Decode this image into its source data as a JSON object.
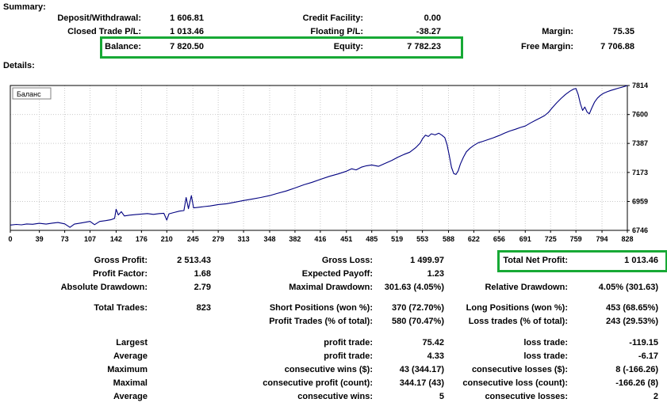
{
  "summary": {
    "title": "Summary:",
    "deposit_withdrawal_label": "Deposit/Withdrawal:",
    "deposit_withdrawal": "1 606.81",
    "credit_facility_label": "Credit Facility:",
    "credit_facility": "0.00",
    "closed_trade_pl_label": "Closed Trade P/L:",
    "closed_trade_pl": "1 013.46",
    "floating_pl_label": "Floating P/L:",
    "floating_pl": "-38.27",
    "margin_label": "Margin:",
    "margin": "75.35",
    "balance_label": "Balance:",
    "balance": "7 820.50",
    "equity_label": "Equity:",
    "equity": "7 782.23",
    "free_margin_label": "Free Margin:",
    "free_margin": "7 706.88"
  },
  "details": {
    "title": "Details:"
  },
  "chart_data": {
    "type": "line",
    "title": "Баланс",
    "xlim": [
      0,
      828
    ],
    "ylim": [
      6746,
      7814
    ],
    "x_ticks": [
      0,
      39,
      73,
      107,
      142,
      176,
      210,
      245,
      279,
      313,
      348,
      382,
      416,
      451,
      485,
      519,
      553,
      588,
      622,
      656,
      691,
      725,
      759,
      794,
      828
    ],
    "y_ticks": [
      6746,
      6959,
      7173,
      7387,
      7600,
      7814
    ],
    "grid": true,
    "legend_position": "top-left",
    "series": [
      {
        "name": "Баланс",
        "color": "#000080",
        "points": [
          [
            0,
            6785
          ],
          [
            8,
            6790
          ],
          [
            15,
            6787
          ],
          [
            22,
            6793
          ],
          [
            30,
            6791
          ],
          [
            39,
            6798
          ],
          [
            48,
            6792
          ],
          [
            56,
            6799
          ],
          [
            64,
            6804
          ],
          [
            73,
            6794
          ],
          [
            80,
            6768
          ],
          [
            86,
            6792
          ],
          [
            95,
            6800
          ],
          [
            101,
            6806
          ],
          [
            107,
            6812
          ],
          [
            113,
            6788
          ],
          [
            120,
            6812
          ],
          [
            128,
            6818
          ],
          [
            135,
            6824
          ],
          [
            140,
            6835
          ],
          [
            142,
            6902
          ],
          [
            145,
            6860
          ],
          [
            149,
            6884
          ],
          [
            153,
            6852
          ],
          [
            160,
            6858
          ],
          [
            168,
            6862
          ],
          [
            176,
            6866
          ],
          [
            184,
            6870
          ],
          [
            192,
            6864
          ],
          [
            200,
            6870
          ],
          [
            206,
            6872
          ],
          [
            210,
            6822
          ],
          [
            213,
            6868
          ],
          [
            220,
            6878
          ],
          [
            227,
            6888
          ],
          [
            233,
            6892
          ],
          [
            236,
            6988
          ],
          [
            239,
            6906
          ],
          [
            243,
            7002
          ],
          [
            246,
            6912
          ],
          [
            252,
            6916
          ],
          [
            260,
            6921
          ],
          [
            268,
            6926
          ],
          [
            279,
            6936
          ],
          [
            290,
            6942
          ],
          [
            300,
            6952
          ],
          [
            313,
            6966
          ],
          [
            324,
            6976
          ],
          [
            336,
            6988
          ],
          [
            348,
            7002
          ],
          [
            358,
            7018
          ],
          [
            370,
            7036
          ],
          [
            382,
            7058
          ],
          [
            394,
            7082
          ],
          [
            405,
            7100
          ],
          [
            416,
            7122
          ],
          [
            428,
            7144
          ],
          [
            440,
            7162
          ],
          [
            451,
            7182
          ],
          [
            458,
            7200
          ],
          [
            464,
            7192
          ],
          [
            471,
            7212
          ],
          [
            478,
            7222
          ],
          [
            485,
            7228
          ],
          [
            494,
            7218
          ],
          [
            503,
            7240
          ],
          [
            512,
            7262
          ],
          [
            520,
            7285
          ],
          [
            528,
            7305
          ],
          [
            536,
            7322
          ],
          [
            544,
            7355
          ],
          [
            550,
            7390
          ],
          [
            553,
            7420
          ],
          [
            557,
            7448
          ],
          [
            561,
            7438
          ],
          [
            565,
            7458
          ],
          [
            570,
            7450
          ],
          [
            575,
            7462
          ],
          [
            579,
            7448
          ],
          [
            583,
            7430
          ],
          [
            586,
            7380
          ],
          [
            589,
            7300
          ],
          [
            592,
            7210
          ],
          [
            595,
            7165
          ],
          [
            598,
            7158
          ],
          [
            601,
            7185
          ],
          [
            604,
            7235
          ],
          [
            608,
            7285
          ],
          [
            612,
            7325
          ],
          [
            617,
            7352
          ],
          [
            622,
            7372
          ],
          [
            628,
            7392
          ],
          [
            634,
            7402
          ],
          [
            641,
            7415
          ],
          [
            648,
            7428
          ],
          [
            656,
            7445
          ],
          [
            663,
            7462
          ],
          [
            670,
            7478
          ],
          [
            678,
            7492
          ],
          [
            685,
            7505
          ],
          [
            691,
            7515
          ],
          [
            698,
            7538
          ],
          [
            705,
            7558
          ],
          [
            711,
            7575
          ],
          [
            717,
            7592
          ],
          [
            722,
            7615
          ],
          [
            727,
            7648
          ],
          [
            733,
            7685
          ],
          [
            739,
            7718
          ],
          [
            745,
            7748
          ],
          [
            751,
            7772
          ],
          [
            756,
            7788
          ],
          [
            759,
            7792
          ],
          [
            762,
            7748
          ],
          [
            765,
            7680
          ],
          [
            768,
            7630
          ],
          [
            771,
            7655
          ],
          [
            774,
            7618
          ],
          [
            777,
            7605
          ],
          [
            780,
            7645
          ],
          [
            784,
            7692
          ],
          [
            788,
            7722
          ],
          [
            792,
            7742
          ],
          [
            796,
            7756
          ],
          [
            801,
            7768
          ],
          [
            806,
            7778
          ],
          [
            811,
            7786
          ],
          [
            816,
            7794
          ],
          [
            821,
            7802
          ],
          [
            825,
            7808
          ],
          [
            828,
            7814
          ]
        ]
      }
    ]
  },
  "stats": {
    "gross_profit_label": "Gross Profit:",
    "gross_profit": "2 513.43",
    "gross_loss_label": "Gross Loss:",
    "gross_loss": "1 499.97",
    "total_net_profit_label": "Total Net Profit:",
    "total_net_profit": "1 013.46",
    "profit_factor_label": "Profit Factor:",
    "profit_factor": "1.68",
    "expected_payoff_label": "Expected Payoff:",
    "expected_payoff": "1.23",
    "absolute_drawdown_label": "Absolute Drawdown:",
    "absolute_drawdown": "2.79",
    "maximal_drawdown_label": "Maximal Drawdown:",
    "maximal_drawdown": "301.63 (4.05%)",
    "relative_drawdown_label": "Relative Drawdown:",
    "relative_drawdown": "4.05% (301.63)",
    "total_trades_label": "Total Trades:",
    "total_trades": "823",
    "short_positions_label": "Short Positions (won %):",
    "short_positions": "370 (72.70%)",
    "long_positions_label": "Long Positions (won %):",
    "long_positions": "453 (68.65%)",
    "profit_trades_label": "Profit Trades (% of total):",
    "profit_trades": "580 (70.47%)",
    "loss_trades_label": "Loss trades (% of total):",
    "loss_trades": "243 (29.53%)",
    "largest_label": "Largest",
    "largest_profit_trade_label": "profit trade:",
    "largest_profit_trade": "75.42",
    "largest_loss_trade_label": "loss trade:",
    "largest_loss_trade": "-119.15",
    "average_label": "Average",
    "average_profit_trade_label": "profit trade:",
    "average_profit_trade": "4.33",
    "average_loss_trade_label": "loss trade:",
    "average_loss_trade": "-6.17",
    "maximum_label": "Maximum",
    "max_consecutive_wins_label": "consecutive wins ($):",
    "max_consecutive_wins": "43 (344.17)",
    "max_consecutive_losses_label": "consecutive losses ($):",
    "max_consecutive_losses": "8 (-166.26)",
    "maximal_label": "Maximal",
    "maximal_consecutive_profit_label": "consecutive profit (count):",
    "maximal_consecutive_profit": "344.17 (43)",
    "maximal_consecutive_loss_label": "consecutive loss (count):",
    "maximal_consecutive_loss": "-166.26 (8)",
    "avg_label": "Average",
    "avg_consecutive_wins_label": "consecutive wins:",
    "avg_consecutive_wins": "5",
    "avg_consecutive_losses_label": "consecutive losses:",
    "avg_consecutive_losses": "2"
  },
  "colors": {
    "highlight_green": "#17a935",
    "balance_line": "#000080"
  }
}
